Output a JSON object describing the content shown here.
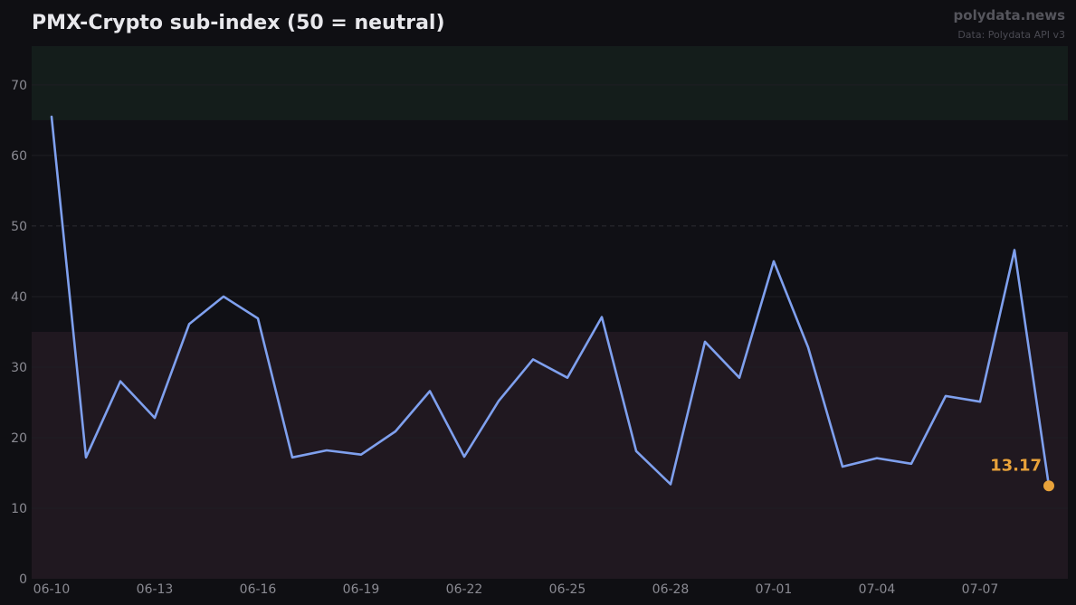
{
  "header": {
    "title": "PMX-Crypto sub-index (50 = neutral)",
    "brand": "polydata.news",
    "source": "Data: Polydata API v3"
  },
  "colors": {
    "background": "#0f0f13",
    "plot_background": "#101015",
    "title": "#e8e8ec",
    "brand": "#55555c",
    "source": "#4a4a52",
    "tick": "#8a8a92",
    "grid": "#1e1e24",
    "neutral_line": "#2c2c34",
    "line": "#7fa0ee",
    "end_point": "#e8a23a",
    "upper_band": "#141d1b",
    "lower_band": "#201820"
  },
  "chart_data": {
    "type": "line",
    "title": "PMX-Crypto sub-index (50 = neutral)",
    "xlabel": "",
    "ylabel": "",
    "ylim": [
      0,
      75.5
    ],
    "yticks": [
      0,
      10,
      20,
      30,
      40,
      50,
      60,
      70
    ],
    "xtick_labels": [
      "06-10",
      "06-13",
      "06-16",
      "06-19",
      "06-22",
      "06-25",
      "06-28",
      "07-01",
      "07-04",
      "07-07"
    ],
    "x": [
      "06-10",
      "06-11",
      "06-12",
      "06-13",
      "06-14",
      "06-15",
      "06-16",
      "06-17",
      "06-18",
      "06-19",
      "06-20",
      "06-21",
      "06-22",
      "06-23",
      "06-24",
      "06-25",
      "06-26",
      "06-27",
      "06-28",
      "06-29",
      "06-30",
      "07-01",
      "07-02",
      "07-03",
      "07-04",
      "07-05",
      "07-06",
      "07-07",
      "07-08",
      "07-09"
    ],
    "series": [
      {
        "values": [
          65.5,
          17.2,
          28.0,
          22.8,
          36.1,
          40.0,
          36.9,
          17.2,
          18.2,
          17.6,
          20.9,
          26.6,
          17.3,
          25.2,
          31.1,
          28.5,
          37.1,
          18.1,
          13.4,
          33.6,
          28.5,
          45.0,
          32.8,
          15.9,
          17.1,
          16.3,
          25.9,
          25.1,
          46.6,
          13.17
        ]
      }
    ],
    "bands": [
      {
        "from": 65,
        "to": 75.5
      },
      {
        "from": 0,
        "to": 35
      }
    ],
    "reference_line": 50,
    "end_label": "13.17",
    "grid": true
  }
}
